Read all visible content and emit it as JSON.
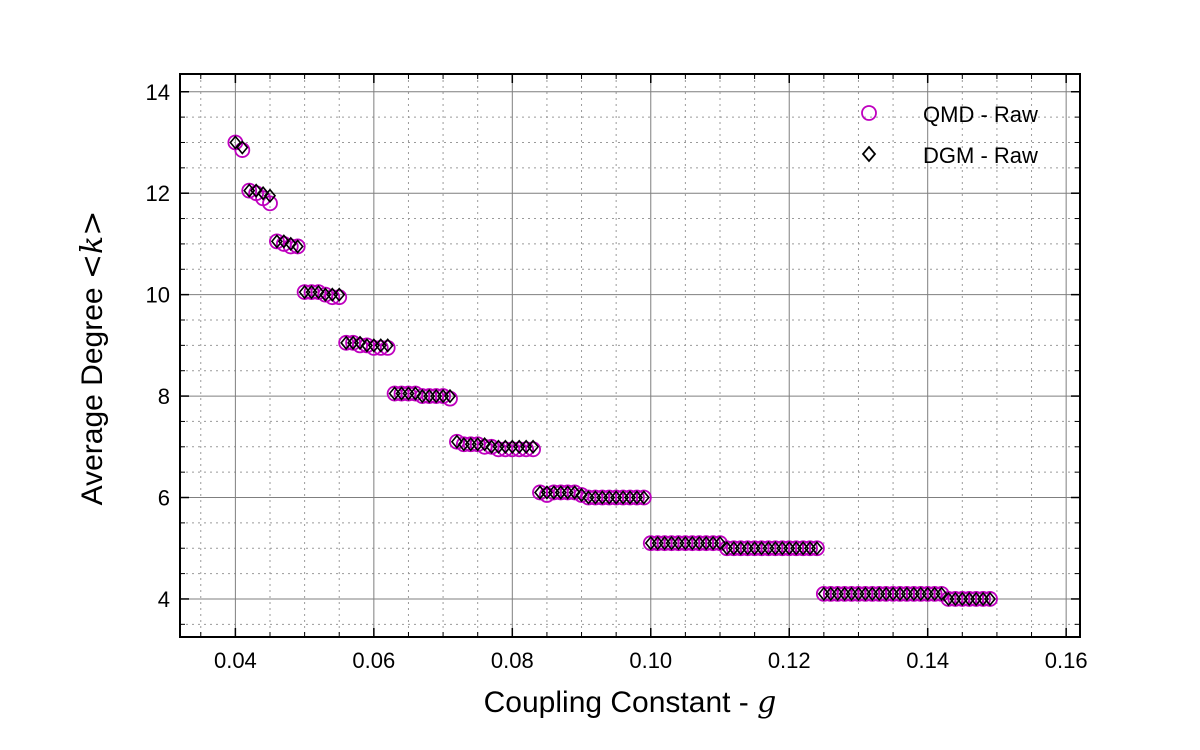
{
  "chart_data": {
    "type": "scatter",
    "xlabel": "Coupling Constant - ",
    "xlabel_symbol": "g",
    "ylabel": "Average Degree ",
    "ylabel_symbol": "<k>",
    "xlim": [
      0.032,
      0.162
    ],
    "ylim": [
      3.25,
      14.35
    ],
    "x_ticks": [
      "0.04",
      "0.06",
      "0.08",
      "0.10",
      "0.12",
      "0.14",
      "0.16"
    ],
    "y_ticks": [
      "4",
      "6",
      "8",
      "10",
      "12",
      "14"
    ],
    "grid": true,
    "minor_grid": true,
    "legend_position": "top-right",
    "series": [
      {
        "name": "QMD - Raw",
        "marker": "circle",
        "color": "#bf00bf",
        "x": [
          0.04,
          0.041,
          0.042,
          0.043,
          0.044,
          0.045,
          0.046,
          0.047,
          0.048,
          0.049,
          0.05,
          0.051,
          0.052,
          0.053,
          0.054,
          0.055,
          0.056,
          0.057,
          0.058,
          0.059,
          0.06,
          0.061,
          0.062,
          0.063,
          0.064,
          0.065,
          0.066,
          0.067,
          0.068,
          0.069,
          0.07,
          0.071,
          0.072,
          0.073,
          0.074,
          0.075,
          0.076,
          0.077,
          0.078,
          0.079,
          0.08,
          0.081,
          0.082,
          0.083,
          0.084,
          0.085,
          0.086,
          0.087,
          0.088,
          0.089,
          0.09,
          0.091,
          0.092,
          0.093,
          0.094,
          0.095,
          0.096,
          0.097,
          0.098,
          0.099,
          0.1,
          0.101,
          0.102,
          0.103,
          0.104,
          0.105,
          0.106,
          0.107,
          0.108,
          0.109,
          0.11,
          0.111,
          0.112,
          0.113,
          0.114,
          0.115,
          0.116,
          0.117,
          0.118,
          0.119,
          0.12,
          0.121,
          0.122,
          0.123,
          0.124,
          0.125,
          0.126,
          0.127,
          0.128,
          0.129,
          0.13,
          0.131,
          0.132,
          0.133,
          0.134,
          0.135,
          0.136,
          0.137,
          0.138,
          0.139,
          0.14,
          0.141,
          0.142,
          0.143,
          0.144,
          0.145,
          0.146,
          0.147,
          0.148,
          0.149
        ],
        "y": [
          13.0,
          12.85,
          12.05,
          12.0,
          11.9,
          11.8,
          11.05,
          11.0,
          10.95,
          10.95,
          10.05,
          10.05,
          10.05,
          10.0,
          9.95,
          9.95,
          9.05,
          9.05,
          9.0,
          9.0,
          8.95,
          8.95,
          8.95,
          8.05,
          8.05,
          8.05,
          8.05,
          8.0,
          8.0,
          8.0,
          8.0,
          7.95,
          7.1,
          7.05,
          7.05,
          7.05,
          7.0,
          7.0,
          6.95,
          6.95,
          6.95,
          6.95,
          6.95,
          6.95,
          6.1,
          6.05,
          6.1,
          6.1,
          6.1,
          6.1,
          6.05,
          6.0,
          6.0,
          6.0,
          6.0,
          6.0,
          6.0,
          6.0,
          6.0,
          6.0,
          5.1,
          5.1,
          5.1,
          5.1,
          5.1,
          5.1,
          5.1,
          5.1,
          5.1,
          5.1,
          5.1,
          5.0,
          5.0,
          5.0,
          5.0,
          5.0,
          5.0,
          5.0,
          5.0,
          5.0,
          5.0,
          5.0,
          5.0,
          5.0,
          5.0,
          4.1,
          4.1,
          4.1,
          4.1,
          4.1,
          4.1,
          4.1,
          4.1,
          4.1,
          4.1,
          4.1,
          4.1,
          4.1,
          4.1,
          4.1,
          4.1,
          4.1,
          4.1,
          4.0,
          4.0,
          4.0,
          4.0,
          4.0,
          4.0,
          4.0
        ]
      },
      {
        "name": "DGM - Raw",
        "marker": "diamond",
        "color": "#000000",
        "x": [
          0.04,
          0.041,
          0.042,
          0.043,
          0.044,
          0.045,
          0.046,
          0.047,
          0.048,
          0.049,
          0.05,
          0.051,
          0.052,
          0.053,
          0.054,
          0.055,
          0.056,
          0.057,
          0.058,
          0.059,
          0.06,
          0.061,
          0.062,
          0.063,
          0.064,
          0.065,
          0.066,
          0.067,
          0.068,
          0.069,
          0.07,
          0.071,
          0.072,
          0.073,
          0.074,
          0.075,
          0.076,
          0.077,
          0.078,
          0.079,
          0.08,
          0.081,
          0.082,
          0.083,
          0.084,
          0.085,
          0.086,
          0.087,
          0.088,
          0.089,
          0.09,
          0.091,
          0.092,
          0.093,
          0.094,
          0.095,
          0.096,
          0.097,
          0.098,
          0.099,
          0.1,
          0.101,
          0.102,
          0.103,
          0.104,
          0.105,
          0.106,
          0.107,
          0.108,
          0.109,
          0.11,
          0.111,
          0.112,
          0.113,
          0.114,
          0.115,
          0.116,
          0.117,
          0.118,
          0.119,
          0.12,
          0.121,
          0.122,
          0.123,
          0.124,
          0.125,
          0.126,
          0.127,
          0.128,
          0.129,
          0.13,
          0.131,
          0.132,
          0.133,
          0.134,
          0.135,
          0.136,
          0.137,
          0.138,
          0.139,
          0.14,
          0.141,
          0.142,
          0.143,
          0.144,
          0.145,
          0.146,
          0.147,
          0.148,
          0.149
        ],
        "y": [
          13.0,
          12.9,
          12.05,
          12.05,
          12.0,
          11.95,
          11.05,
          11.05,
          11.0,
          10.95,
          10.05,
          10.05,
          10.05,
          10.0,
          10.0,
          10.0,
          9.05,
          9.05,
          9.05,
          9.0,
          9.0,
          9.0,
          9.0,
          8.05,
          8.05,
          8.05,
          8.05,
          8.0,
          8.0,
          8.0,
          8.0,
          8.0,
          7.1,
          7.05,
          7.05,
          7.05,
          7.05,
          7.0,
          7.0,
          7.0,
          7.0,
          7.0,
          7.0,
          7.0,
          6.1,
          6.1,
          6.1,
          6.1,
          6.1,
          6.1,
          6.05,
          6.0,
          6.0,
          6.0,
          6.0,
          6.0,
          6.0,
          6.0,
          6.0,
          6.0,
          5.1,
          5.1,
          5.1,
          5.1,
          5.1,
          5.1,
          5.1,
          5.1,
          5.1,
          5.1,
          5.1,
          5.0,
          5.0,
          5.0,
          5.0,
          5.0,
          5.0,
          5.0,
          5.0,
          5.0,
          5.0,
          5.0,
          5.0,
          5.0,
          5.0,
          4.1,
          4.1,
          4.1,
          4.1,
          4.1,
          4.1,
          4.1,
          4.1,
          4.1,
          4.1,
          4.1,
          4.1,
          4.1,
          4.1,
          4.1,
          4.1,
          4.1,
          4.1,
          4.0,
          4.0,
          4.0,
          4.0,
          4.0,
          4.0,
          4.0
        ]
      }
    ]
  }
}
